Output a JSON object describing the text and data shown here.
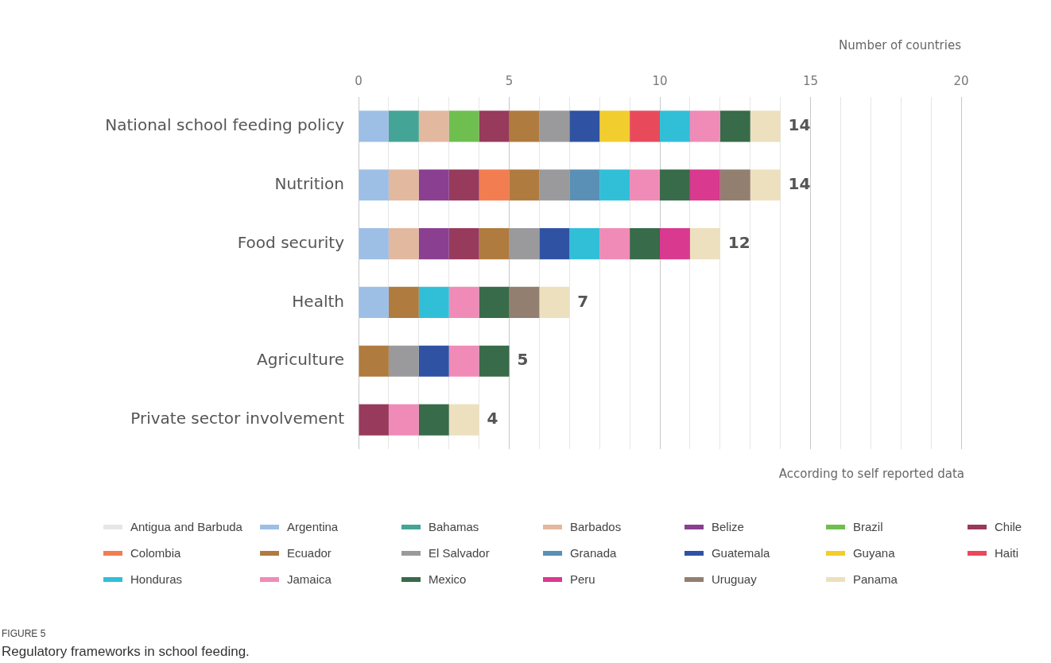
{
  "chart_data": {
    "type": "bar",
    "orientation": "horizontal",
    "stacked": true,
    "title": "FIGURE 5",
    "subtitle": "Regulatory frameworks in school feeding.",
    "xlabel": "Number of countries",
    "annotations": [
      "According to self reported data"
    ],
    "categories": [
      "National school feeding policy",
      "Nutrition",
      "Food security",
      "Health",
      "Agriculture",
      "Private sector involvement"
    ],
    "xlim": [
      0,
      20
    ],
    "xticks": [
      0,
      {
        "value": 1,
        "label": null
      },
      {
        "value": 2,
        "label": null
      },
      {
        "value": 3,
        "label": null
      },
      {
        "value": 4,
        "label": null
      },
      5,
      {
        "value": 6,
        "label": null
      },
      {
        "value": 7,
        "label": null
      },
      {
        "value": 8,
        "label": null
      },
      {
        "value": 9,
        "label": null
      },
      10,
      {
        "value": 11,
        "label": null
      },
      {
        "value": 12,
        "label": null
      },
      {
        "value": 13,
        "label": null
      },
      {
        "value": 14,
        "label": null
      },
      15,
      {
        "value": 16,
        "label": null
      },
      {
        "value": 17,
        "label": null
      },
      {
        "value": 18,
        "label": null
      },
      {
        "value": 19,
        "label": null
      },
      20
    ],
    "grid": "x",
    "legend": "bottom",
    "totals": [
      "14",
      "14",
      "12",
      "7",
      "5",
      "4"
    ],
    "series": [
      {
        "name": "Antigua and Barbuda",
        "color": "#e6e6e6",
        "values": [
          0,
          0,
          0,
          0,
          0,
          0
        ]
      },
      {
        "name": "Argentina",
        "color": "#9dbfe6",
        "values": [
          1,
          1,
          1,
          1,
          0,
          0
        ]
      },
      {
        "name": "Bahamas",
        "color": "#44a596",
        "values": [
          1,
          0,
          0,
          0,
          0,
          0
        ]
      },
      {
        "name": "Barbados",
        "color": "#e2b89f",
        "values": [
          1,
          1,
          1,
          0,
          0,
          0
        ]
      },
      {
        "name": "Belize",
        "color": "#8a3f91",
        "values": [
          0,
          1,
          1,
          0,
          0,
          0
        ]
      },
      {
        "name": "Brazil",
        "color": "#6fbf50",
        "values": [
          1,
          0,
          0,
          0,
          0,
          0
        ]
      },
      {
        "name": "Chile",
        "color": "#973a5c",
        "values": [
          1,
          1,
          1,
          0,
          0,
          1
        ]
      },
      {
        "name": "Colombia",
        "color": "#f27d50",
        "values": [
          0,
          1,
          0,
          0,
          0,
          0
        ]
      },
      {
        "name": "Ecuador",
        "color": "#b07b3f",
        "values": [
          1,
          1,
          1,
          1,
          1,
          0
        ]
      },
      {
        "name": "El Salvador",
        "color": "#9a9a9c",
        "values": [
          1,
          1,
          1,
          0,
          1,
          0
        ]
      },
      {
        "name": "Granada",
        "color": "#5a90b5",
        "values": [
          0,
          1,
          0,
          0,
          0,
          0
        ]
      },
      {
        "name": "Guatemala",
        "color": "#2f52a3",
        "values": [
          1,
          0,
          1,
          0,
          1,
          0
        ]
      },
      {
        "name": "Guyana",
        "color": "#f2cd2e",
        "values": [
          1,
          0,
          0,
          0,
          0,
          0
        ]
      },
      {
        "name": "Haiti",
        "color": "#e84a5b",
        "values": [
          1,
          0,
          0,
          0,
          0,
          0
        ]
      },
      {
        "name": "Honduras",
        "color": "#31bfd8",
        "values": [
          1,
          1,
          1,
          1,
          0,
          0
        ]
      },
      {
        "name": "Jamaica",
        "color": "#f08bb8",
        "values": [
          1,
          1,
          1,
          1,
          1,
          1
        ]
      },
      {
        "name": "Mexico",
        "color": "#386b49",
        "values": [
          1,
          1,
          1,
          1,
          1,
          1
        ]
      },
      {
        "name": "Peru",
        "color": "#d9398f",
        "values": [
          0,
          1,
          1,
          0,
          0,
          0
        ]
      },
      {
        "name": "Uruguay",
        "color": "#937f70",
        "values": [
          0,
          1,
          0,
          1,
          0,
          0
        ]
      },
      {
        "name": "Panama",
        "color": "#ede0be",
        "values": [
          1,
          1,
          1,
          1,
          0,
          1
        ]
      }
    ]
  }
}
